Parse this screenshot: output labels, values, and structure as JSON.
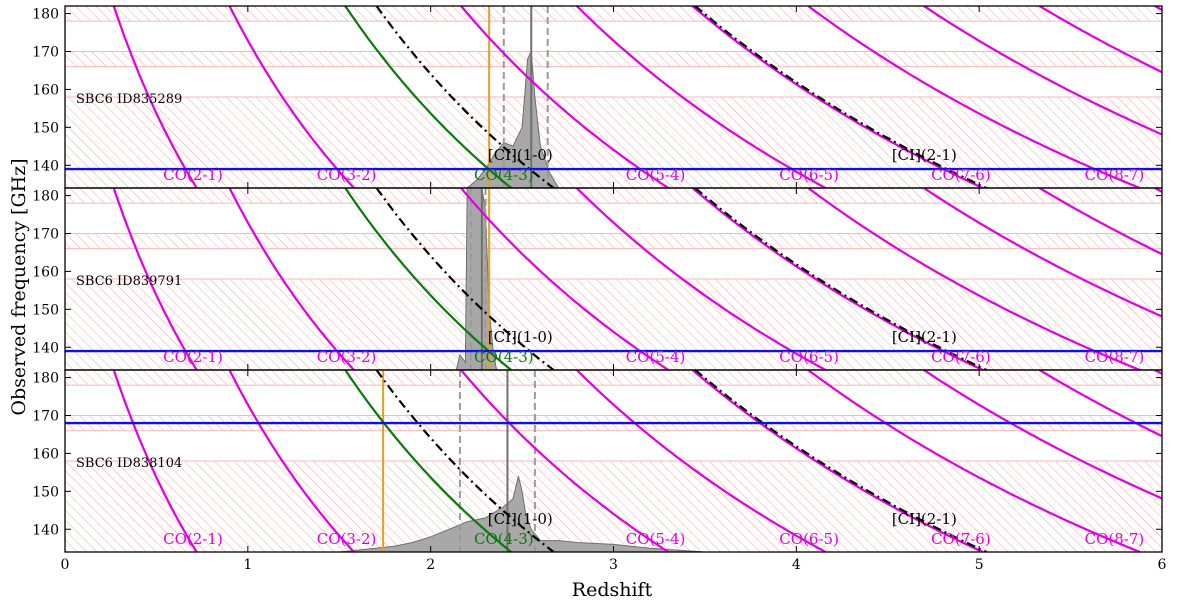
{
  "chart_data": {
    "type": "line",
    "xlabel": "Redshift",
    "ylabel": "Observed frequency [GHz]",
    "xlim": [
      0,
      6
    ],
    "ylim": [
      134,
      182
    ],
    "x_ticks": [
      0,
      1,
      2,
      3,
      4,
      5,
      6
    ],
    "y_ticks": [
      140,
      150,
      160,
      170,
      180
    ],
    "shaded_bands_ghz": [
      [
        134,
        158
      ],
      [
        166,
        170
      ],
      [
        178,
        182
      ]
    ],
    "colors": {
      "co": "#e000e0",
      "co43": "#0a7a0a",
      "ci": "#000000",
      "observed": "#1010e0",
      "optical": "#e0a020",
      "pdf_fill": "#a8a8a8",
      "pdf_line": "#6e6e6e",
      "band_hatch": "#f4a0a0"
    },
    "lines_ghz": [
      {
        "label": "CO(2-1)",
        "rest": 230.538,
        "color": "co"
      },
      {
        "label": "CO(3-2)",
        "rest": 345.796,
        "color": "co"
      },
      {
        "label": "CO(4-3)",
        "rest": 461.041,
        "color": "co43"
      },
      {
        "label": "CO(5-4)",
        "rest": 576.268,
        "color": "co"
      },
      {
        "label": "CO(6-5)",
        "rest": 691.473,
        "color": "co"
      },
      {
        "label": "CO(7-6)",
        "rest": 806.652,
        "color": "co"
      },
      {
        "label": "CO(8-7)",
        "rest": 921.8,
        "color": "co"
      },
      {
        "rest": 1036.912,
        "color": "co"
      },
      {
        "rest": 1151.985,
        "color": "co"
      },
      {
        "rest": 1267.014,
        "color": "co"
      },
      {
        "label": "[CI](1-0)",
        "rest": 492.161,
        "color": "ci",
        "dash": true
      },
      {
        "label": "[CI](2-1)",
        "rest": 809.342,
        "color": "ci",
        "dash": true
      }
    ],
    "line_label_z": {
      "CO(2-1)": 0.7,
      "CO(3-2)": 1.54,
      "CO(4-3)": 2.4,
      "CO(5-4)": 3.23,
      "CO(6-5)": 4.07,
      "CO(7-6)": 4.9,
      "CO(8-7)": 5.74,
      "[CI](1-0)": 2.49,
      "[CI](2-1)": 4.7
    },
    "panels": [
      {
        "name": "SBC6 ID835289",
        "observed_freq_ghz": 139.0,
        "z_optical": 2.32,
        "z_best": 2.55,
        "z_range": [
          2.4,
          2.64
        ],
        "pdf_z": [
          2.2,
          2.25,
          2.3,
          2.35,
          2.4,
          2.45,
          2.5,
          2.53,
          2.55,
          2.57,
          2.6,
          2.65,
          2.7
        ],
        "pdf_ghz": [
          134,
          136,
          139,
          143,
          146,
          145,
          150,
          168,
          170,
          158,
          145,
          138,
          134
        ]
      },
      {
        "name": "SBC6 ID839791",
        "observed_freq_ghz": 139.0,
        "z_optical": 2.32,
        "z_best": 2.28,
        "z_range": [
          2.22,
          2.3
        ],
        "pdf_z": [
          2.14,
          2.16,
          2.19,
          2.2,
          2.21,
          2.22,
          2.24,
          2.26,
          2.28,
          2.3,
          2.32,
          2.34,
          2.36
        ],
        "pdf_ghz": [
          134,
          138,
          136,
          182,
          182,
          182,
          182,
          182,
          182,
          176,
          150,
          140,
          134
        ]
      },
      {
        "name": "SBC6 ID838104",
        "observed_freq_ghz": 168.0,
        "z_optical": 1.74,
        "z_best": 2.42,
        "z_range": [
          2.16,
          2.57
        ],
        "pdf_z": [
          1.5,
          1.7,
          1.8,
          1.9,
          2.0,
          2.1,
          2.2,
          2.3,
          2.4,
          2.45,
          2.48,
          2.5,
          2.52,
          2.55,
          2.6,
          2.7,
          2.8,
          3.0,
          3.2,
          3.5
        ],
        "pdf_ghz": [
          134,
          135,
          135.5,
          136.5,
          138,
          140,
          142,
          143,
          146,
          148,
          154,
          150,
          144,
          140,
          137,
          137,
          136.5,
          136,
          135,
          134
        ]
      }
    ]
  }
}
